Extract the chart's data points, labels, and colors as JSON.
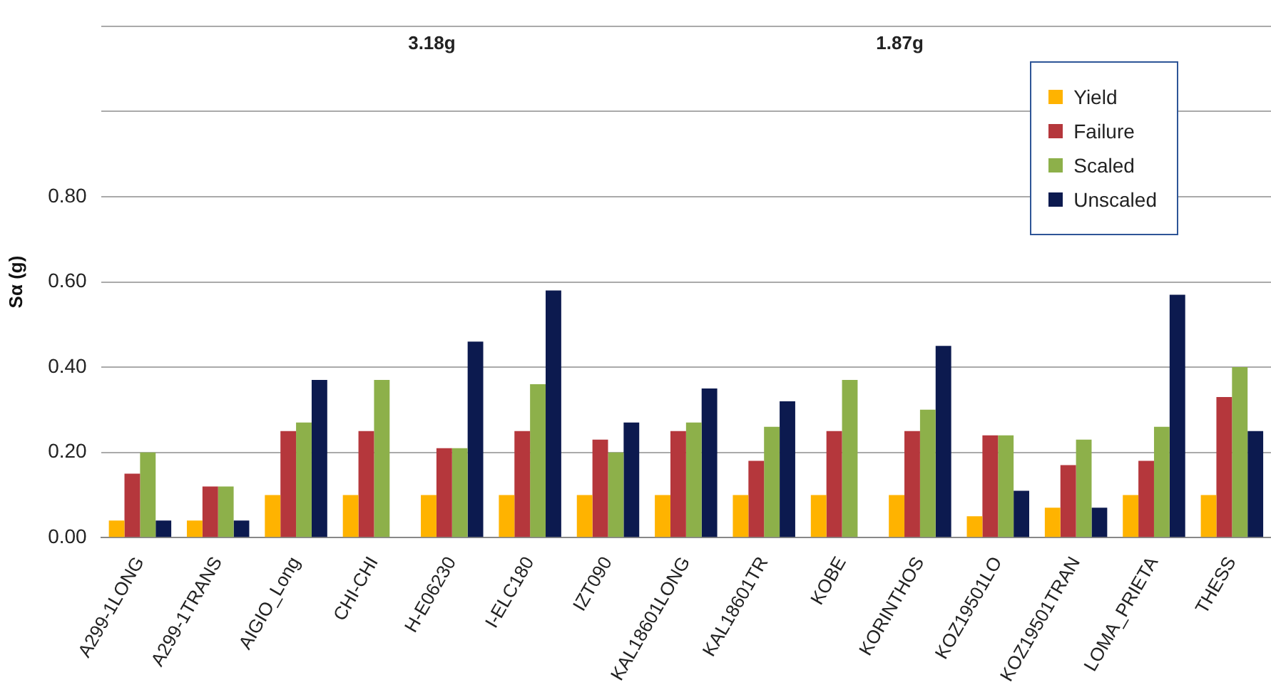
{
  "chart_data": {
    "type": "bar",
    "ylabel": "Sα (g)",
    "categories": [
      "A299-1LONG",
      "A299-1TRANS",
      "AIGIO_Long",
      "CHI-CHI",
      "H-E06230",
      "I-ELC180",
      "IZT090",
      "KAL18601LONG",
      "KAL18601TR",
      "KOBE",
      "KORINTHOS",
      "KOZ19501LO",
      "KOZ19501TRAN",
      "LOMA_PRIETA",
      "THESS"
    ],
    "series": [
      {
        "name": "Yield",
        "color": "#ffb300",
        "values": [
          0.04,
          0.04,
          0.1,
          0.1,
          0.1,
          0.1,
          0.1,
          0.1,
          0.1,
          0.1,
          0.1,
          0.05,
          0.07,
          0.1,
          0.1
        ]
      },
      {
        "name": "Failure",
        "color": "#b5373c",
        "values": [
          0.15,
          0.12,
          0.25,
          0.25,
          0.21,
          0.25,
          0.23,
          0.25,
          0.18,
          0.25,
          0.25,
          0.24,
          0.17,
          0.18,
          0.33
        ]
      },
      {
        "name": "Scaled",
        "color": "#8db04a",
        "values": [
          0.2,
          0.12,
          0.27,
          0.37,
          0.21,
          0.36,
          0.2,
          0.27,
          0.26,
          0.37,
          0.3,
          0.24,
          0.23,
          0.26,
          0.4
        ]
      },
      {
        "name": "Unscaled",
        "color": "#0c1a4f",
        "values": [
          0.04,
          0.04,
          0.37,
          null,
          0.46,
          0.58,
          0.27,
          0.35,
          0.32,
          null,
          0.45,
          0.11,
          0.07,
          0.57,
          0.25
        ]
      }
    ],
    "ylim": [
      0,
      1.2
    ],
    "yticks": [
      {
        "value": 0,
        "label": "0.00"
      },
      {
        "value": 0.2,
        "label": "0.20"
      },
      {
        "value": 0.4,
        "label": "0.40"
      },
      {
        "value": 0.6,
        "label": "0.60"
      },
      {
        "value": 0.8,
        "label": "0.80"
      },
      {
        "value": 1.0,
        "label": null
      },
      {
        "value": 1.2,
        "label": null
      }
    ],
    "grid": "y",
    "legend": "top right",
    "annotations": [
      "3.18g",
      "1.87g"
    ]
  }
}
